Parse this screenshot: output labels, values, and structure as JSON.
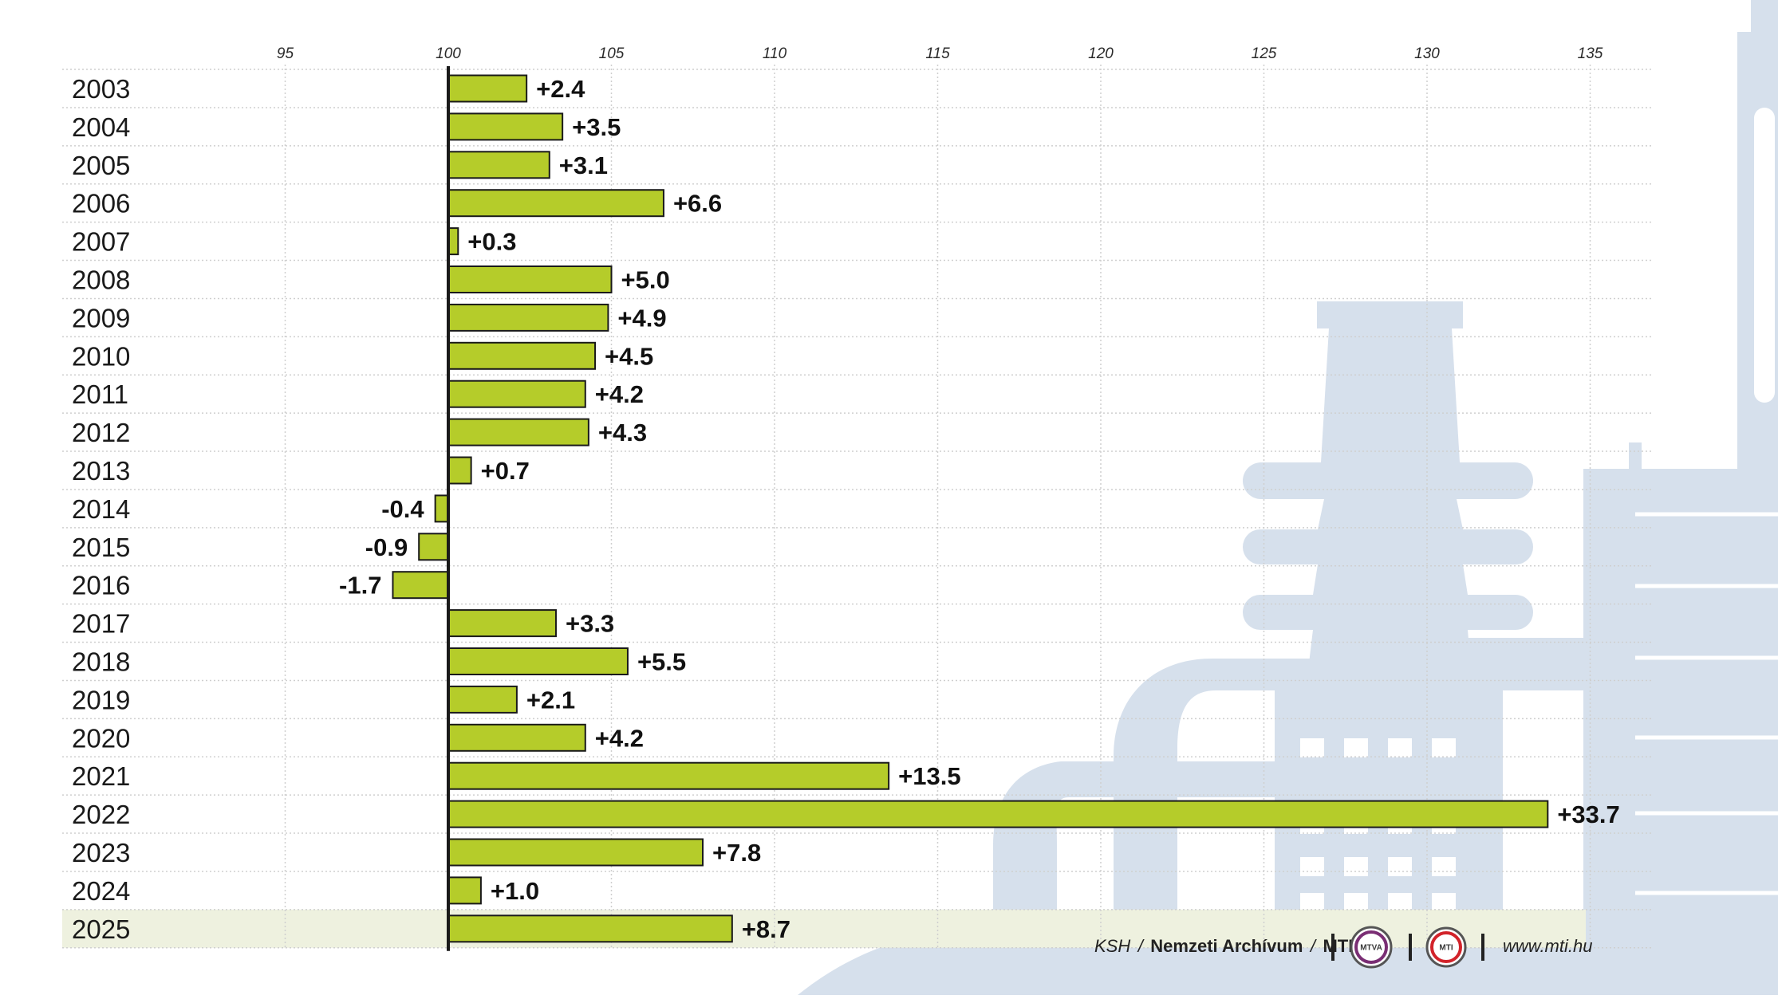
{
  "chart_data": {
    "type": "bar",
    "orientation": "horizontal",
    "title": "",
    "xlabel": "",
    "ylabel": "",
    "baseline": 100,
    "xlim": [
      90,
      137
    ],
    "x_ticks": [
      "95",
      "100",
      "105",
      "110",
      "115",
      "120",
      "125",
      "130",
      "135"
    ],
    "highlight_category": "2025",
    "categories": [
      "2003",
      "2004",
      "2005",
      "2006",
      "2007",
      "2008",
      "2009",
      "2010",
      "2011",
      "2012",
      "2013",
      "2014",
      "2015",
      "2016",
      "2017",
      "2018",
      "2019",
      "2020",
      "2021",
      "2022",
      "2023",
      "2024",
      "2025"
    ],
    "values": [
      2.4,
      3.5,
      3.1,
      6.6,
      0.3,
      5.0,
      4.9,
      4.5,
      4.2,
      4.3,
      0.7,
      -0.4,
      -0.9,
      -1.7,
      3.3,
      5.5,
      2.1,
      4.2,
      13.5,
      33.7,
      7.8,
      1.0,
      8.7
    ],
    "value_labels": [
      "+2.4",
      "+3.5",
      "+3.1",
      "+6.6",
      "+0.3",
      "+5.0",
      "+4.9",
      "+4.5",
      "+4.2",
      "+4.3",
      "+0.7",
      "-0.4",
      "-0.9",
      "-1.7",
      "+3.3",
      "+5.5",
      "+2.1",
      "+4.2",
      "+13.5",
      "+33.7",
      "+7.8",
      "+1.0",
      "+8.7"
    ],
    "grid": true,
    "legend": "none"
  },
  "colors": {
    "bar_fill": "#b5cc2a",
    "bar_stroke": "#1a1a1a",
    "baseline": "#1a1a1a",
    "highlight_row": "#eef1df",
    "background_art": "#d6e0ec",
    "grid": "#cfcfcf"
  },
  "source": {
    "agencies": "KSH",
    "separator": "/",
    "archive": "Nemzeti Archívum",
    "agency": "MTI",
    "logo1": "MTVA",
    "logo2": "MTI",
    "website": "www.mti.hu"
  },
  "icons": {
    "background": "factory-illustration-icon",
    "logo1": "mtva-logo-icon",
    "logo2": "mti-logo-icon"
  }
}
